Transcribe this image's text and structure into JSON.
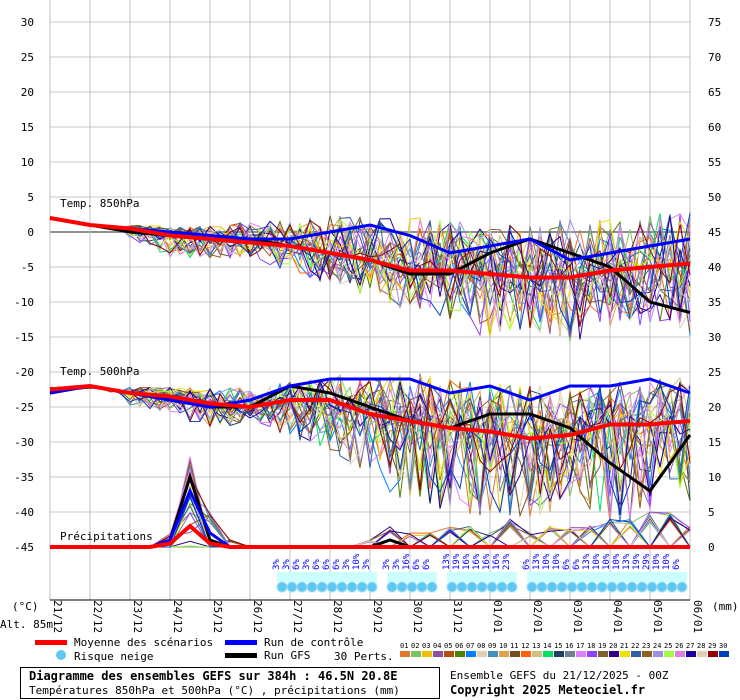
{
  "chart_data": {
    "type": "line",
    "title": "Diagramme des ensembles GEFS sur 384h : 46.5N 20.8E",
    "subtitle": "Températures 850hPa et 500hPa (°C) , précipitations (mm)",
    "run_info": "Ensemble GEFS du 21/12/2025 - 00Z",
    "copyright": "Copyright 2025 Meteociel.fr",
    "ylabel_left": "(°C)",
    "ylabel_right": "(mm)",
    "altitude": "Alt. 85m",
    "ylim_left": [
      -45,
      30
    ],
    "ylim_right": [
      0,
      75
    ],
    "left_ticks": [
      "30",
      "25",
      "20",
      "15",
      "10",
      "5",
      "0",
      "-5",
      "-10",
      "-15",
      "-20",
      "-25",
      "-30",
      "-35",
      "-40",
      "-45"
    ],
    "right_ticks": [
      "75",
      "70",
      "65",
      "60",
      "55",
      "50",
      "45",
      "40",
      "35",
      "30",
      "25",
      "20",
      "15",
      "10",
      "5",
      "0"
    ],
    "x": [
      "21/12",
      "22/12",
      "23/12",
      "24/12",
      "25/12",
      "26/12",
      "27/12",
      "28/12",
      "29/12",
      "30/12",
      "31/12",
      "01/01",
      "02/01",
      "03/01",
      "04/01",
      "05/01",
      "06/01"
    ],
    "section_labels": {
      "t850": "Temp. 850hPa",
      "t500": "Temp. 500hPa",
      "precip": "Précipitations"
    },
    "t850": {
      "mean": [
        2,
        1,
        0.5,
        -0.5,
        -1,
        -1.5,
        -2,
        -3,
        -4,
        -5.5,
        -5.5,
        -6,
        -6.5,
        -6.5,
        -5.5,
        -5,
        -4.5
      ],
      "control": [
        2,
        1,
        0.5,
        0,
        -0.5,
        -1,
        -1,
        0,
        1,
        -0.5,
        -3,
        -2,
        -1,
        -4,
        -3,
        -2,
        -1
      ],
      "gfs": [
        2,
        1,
        0,
        -0.5,
        -1,
        -1,
        -2,
        -3,
        -4,
        -6,
        -6,
        -3,
        -1,
        -3,
        -5,
        -10,
        -11.5
      ],
      "perts_low": [
        1,
        0,
        -1,
        -4,
        -4,
        -4,
        -6,
        -8,
        -10,
        -12,
        -15,
        -16,
        -15,
        -17,
        -15,
        -14,
        -16
      ],
      "perts_high": [
        2.5,
        2,
        1,
        1,
        1,
        2,
        2,
        3,
        3,
        3,
        3,
        2,
        2,
        3,
        3,
        4,
        4
      ]
    },
    "t500": {
      "mean": [
        -22.5,
        -22,
        -23,
        -23.5,
        -24.5,
        -25,
        -24,
        -24,
        -26,
        -27,
        -28,
        -28.5,
        -29.5,
        -29,
        -27.5,
        -27.5,
        -27
      ],
      "control": [
        -23,
        -22,
        -23,
        -24,
        -25,
        -24,
        -22,
        -21,
        -21,
        -21,
        -23,
        -22,
        -24,
        -22,
        -22,
        -21,
        -23
      ],
      "gfs": [
        -23,
        -22,
        -23,
        -24,
        -25,
        -25,
        -22,
        -23,
        -25,
        -27,
        -28,
        -26,
        -26,
        -28,
        -33,
        -37,
        -29
      ],
      "perts_low": [
        -24,
        -24,
        -25,
        -26,
        -29,
        -27,
        -30,
        -32,
        -37,
        -40,
        -42,
        -42,
        -43,
        -40,
        -44,
        -42,
        -40
      ],
      "perts_high": [
        -21,
        -21,
        -22,
        -22,
        -22,
        -22,
        -21,
        -20,
        -20,
        -19,
        -20,
        -21,
        -21,
        -22,
        -20,
        -20,
        -20
      ]
    },
    "precip_mm_12h": {
      "mean": [
        0,
        0,
        0,
        0,
        0,
        0,
        0.5,
        3,
        0.5,
        0,
        0,
        0,
        0,
        0,
        0,
        0,
        0,
        0,
        0,
        0,
        0,
        0,
        0,
        0,
        0,
        0,
        0,
        0,
        0,
        0,
        0,
        0,
        0
      ],
      "control": [
        0,
        0,
        0,
        0,
        0,
        0,
        1,
        8,
        2,
        0,
        0,
        0,
        0,
        0,
        0,
        0,
        0,
        0,
        0,
        0,
        0,
        0,
        0,
        0,
        0,
        0,
        0,
        0,
        0,
        0,
        0,
        0,
        0
      ],
      "gfs": [
        0,
        0,
        0,
        0,
        0,
        0,
        1,
        10,
        1,
        0,
        0,
        0,
        0,
        0,
        0,
        0,
        0,
        1,
        0,
        0,
        0,
        0,
        0,
        0,
        0,
        0,
        0,
        0,
        0,
        0,
        0,
        0,
        0
      ],
      "perts_high": [
        0,
        0,
        0,
        0,
        0,
        0,
        2,
        13,
        5,
        1,
        0,
        0,
        0,
        0,
        0,
        0,
        1,
        3,
        2,
        2,
        3,
        3,
        2,
        4,
        2,
        3,
        3,
        3,
        4,
        4,
        5,
        5,
        3
      ]
    },
    "snow_risk": [
      {
        "step": 23,
        "pct": "3%"
      },
      {
        "step": 24,
        "pct": "3%"
      },
      {
        "step": 25,
        "pct": "6%"
      },
      {
        "step": 26,
        "pct": "3%"
      },
      {
        "step": 27,
        "pct": "6%"
      },
      {
        "step": 28,
        "pct": "6%"
      },
      {
        "step": 29,
        "pct": "6%"
      },
      {
        "step": 30,
        "pct": "3%"
      },
      {
        "step": 31,
        "pct": "10%"
      },
      {
        "step": 32,
        "pct": "3%"
      },
      {
        "step": 34,
        "pct": "3%"
      },
      {
        "step": 35,
        "pct": "3%"
      },
      {
        "step": 36,
        "pct": "16%"
      },
      {
        "step": 37,
        "pct": "6%"
      },
      {
        "step": 38,
        "pct": "6%"
      },
      {
        "step": 40,
        "pct": "13%"
      },
      {
        "step": 41,
        "pct": "19%"
      },
      {
        "step": 42,
        "pct": "16%"
      },
      {
        "step": 43,
        "pct": "16%"
      },
      {
        "step": 44,
        "pct": "16%"
      },
      {
        "step": 45,
        "pct": "16%"
      },
      {
        "step": 46,
        "pct": "23%"
      },
      {
        "step": 48,
        "pct": "6%"
      },
      {
        "step": 49,
        "pct": "13%"
      },
      {
        "step": 50,
        "pct": "10%"
      },
      {
        "step": 51,
        "pct": "10%"
      },
      {
        "step": 52,
        "pct": "6%"
      },
      {
        "step": 53,
        "pct": "6%"
      },
      {
        "step": 54,
        "pct": "13%"
      },
      {
        "step": 55,
        "pct": "10%"
      },
      {
        "step": 56,
        "pct": "10%"
      },
      {
        "step": 57,
        "pct": "10%"
      },
      {
        "step": 58,
        "pct": "13%"
      },
      {
        "step": 59,
        "pct": "19%"
      },
      {
        "step": 60,
        "pct": "29%"
      },
      {
        "step": 61,
        "pct": "10%"
      },
      {
        "step": 62,
        "pct": "10%"
      },
      {
        "step": 63,
        "pct": "6%"
      }
    ],
    "legend": {
      "mean": "Moyenne des scénarios",
      "control": "Run de contrôle",
      "gfs": "Run GFS",
      "snow": "Risque neige",
      "perts": "30 Perts.",
      "colors": {
        "mean": "#ff0000",
        "control": "#0000ff",
        "gfs": "#000000"
      },
      "pert_ids": [
        "01",
        "02",
        "03",
        "04",
        "05",
        "06",
        "07",
        "08",
        "09",
        "10",
        "11",
        "12",
        "13",
        "14",
        "15",
        "16",
        "17",
        "18",
        "19",
        "20",
        "21",
        "22",
        "23",
        "24",
        "25",
        "26",
        "27",
        "28",
        "29",
        "30"
      ],
      "pert_colors": [
        "#e07830",
        "#80c060",
        "#f0c000",
        "#9050a0",
        "#b05010",
        "#508000",
        "#0080ff",
        "#e0d0b0",
        "#4090c0",
        "#e0a050",
        "#705020",
        "#ff6010",
        "#d0c080",
        "#00e060",
        "#204060",
        "#708090",
        "#e080ff",
        "#9040ff",
        "#806030",
        "#300080",
        "#f0e000",
        "#3060a0",
        "#906020",
        "#a090e0",
        "#a0ff40",
        "#e080e0",
        "#2000a0",
        "#e0d0b0",
        "#900000",
        "#0040c0"
      ]
    }
  }
}
